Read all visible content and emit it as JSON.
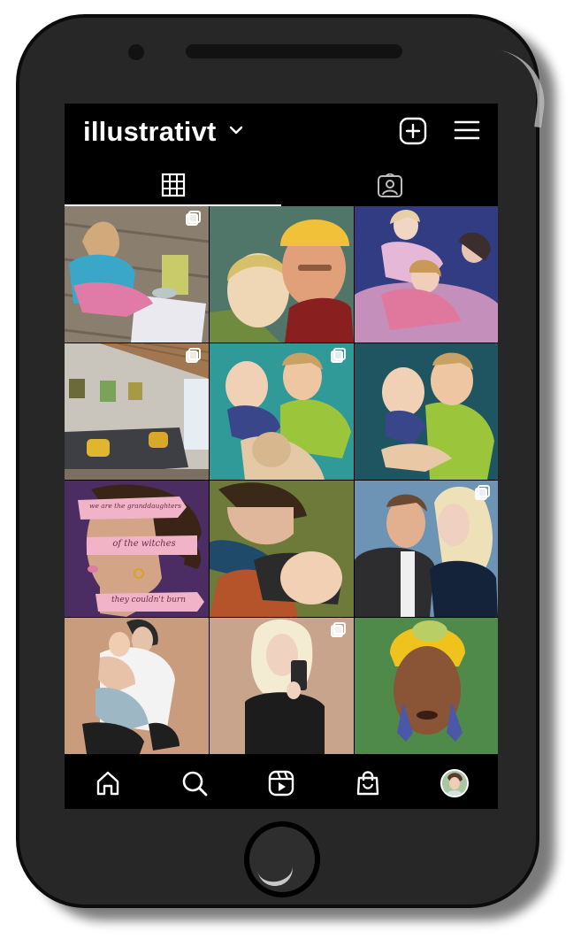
{
  "profile": {
    "username": "illustrativt"
  },
  "header": {
    "add_icon": "plus-square-icon",
    "menu_icon": "hamburger-icon"
  },
  "tabs": [
    {
      "icon": "grid-icon",
      "active": true
    },
    {
      "icon": "tagged-person-icon",
      "active": false
    }
  ],
  "posts": [
    {
      "subject": "child-drawing-on-deck",
      "multi": true
    },
    {
      "subject": "couple-yellow-beanie-illustration",
      "multi": false
    },
    {
      "subject": "three-girls-purple-illustration",
      "multi": false
    },
    {
      "subject": "living-room-with-paintings",
      "multi": true
    },
    {
      "subject": "father-with-babies-teal",
      "multi": true
    },
    {
      "subject": "father-kissing-baby-teal",
      "multi": false
    },
    {
      "subject": "witches-quote-illustration",
      "multi": false,
      "banner_lines": [
        "we are the granddaughters",
        "of the witches",
        "they couldn't burn"
      ]
    },
    {
      "subject": "mother-with-baby-olive",
      "multi": false
    },
    {
      "subject": "couple-blue-illustration",
      "multi": true
    },
    {
      "subject": "mother-hugging-child-beige",
      "multi": false
    },
    {
      "subject": "woman-selfie-mirror",
      "multi": true
    },
    {
      "subject": "woman-yellow-headwrap",
      "multi": false
    }
  ],
  "navbar": [
    "home-icon",
    "search-icon",
    "reels-icon",
    "shop-icon",
    "profile-avatar"
  ],
  "colors": {
    "screen": "#000000",
    "phone_body": "#272727",
    "text": "#ffffff"
  }
}
